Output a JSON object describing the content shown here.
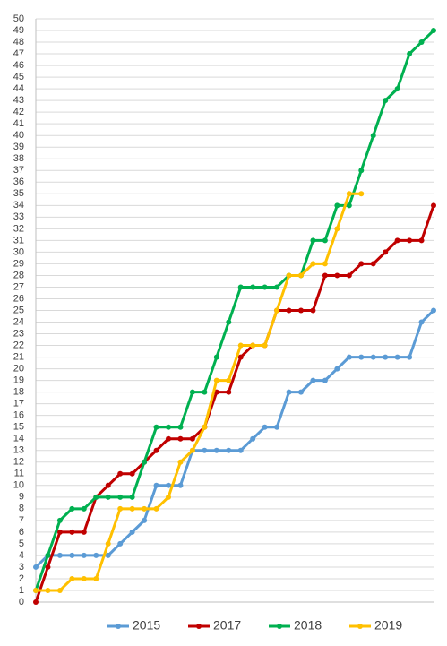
{
  "chart_data": {
    "type": "line",
    "categories": [
      null,
      null,
      null,
      null,
      null,
      null,
      null,
      null,
      null,
      null,
      null,
      null,
      null,
      null,
      null,
      null,
      null,
      null,
      null,
      null,
      null,
      null,
      null,
      null,
      null,
      null,
      null,
      null,
      null,
      null,
      null,
      null,
      null,
      null
    ],
    "series": [
      {
        "name": "2015",
        "color": "#5b9bd5",
        "values": [
          3,
          4,
          4,
          4,
          4,
          4,
          4,
          5,
          6,
          7,
          10,
          10,
          10,
          13,
          13,
          13,
          13,
          13,
          14,
          15,
          15,
          18,
          18,
          19,
          19,
          20,
          21,
          21,
          21,
          21,
          21,
          21,
          24,
          25
        ]
      },
      {
        "name": "2017",
        "color": "#c00000",
        "values": [
          0,
          3,
          6,
          6,
          6,
          9,
          10,
          11,
          11,
          12,
          13,
          14,
          14,
          14,
          15,
          18,
          18,
          21,
          22,
          22,
          25,
          25,
          25,
          25,
          28,
          28,
          28,
          29,
          29,
          30,
          31,
          31,
          31,
          34
        ]
      },
      {
        "name": "2018",
        "color": "#00b050",
        "values": [
          1,
          4,
          7,
          8,
          8,
          9,
          9,
          9,
          9,
          12,
          15,
          15,
          15,
          18,
          18,
          21,
          24,
          27,
          27,
          27,
          27,
          28,
          28,
          31,
          31,
          34,
          34,
          37,
          40,
          43,
          44,
          47,
          48,
          49
        ]
      },
      {
        "name": "2019",
        "color": "#ffc000",
        "values": [
          1,
          1,
          1,
          2,
          2,
          2,
          5,
          8,
          8,
          8,
          8,
          9,
          12,
          13,
          15,
          19,
          19,
          22,
          22,
          22,
          25,
          28,
          28,
          29,
          29,
          32,
          35,
          35,
          null,
          null,
          null,
          null,
          null,
          null
        ]
      }
    ],
    "ylim": [
      0,
      50
    ],
    "yticks": [
      0,
      1,
      2,
      3,
      4,
      5,
      6,
      7,
      8,
      9,
      10,
      11,
      12,
      13,
      14,
      15,
      16,
      17,
      18,
      19,
      20,
      21,
      22,
      23,
      24,
      25,
      26,
      27,
      28,
      29,
      30,
      31,
      32,
      33,
      34,
      35,
      36,
      37,
      38,
      39,
      40,
      41,
      42,
      43,
      44,
      45,
      46,
      47,
      48,
      49,
      50
    ],
    "grid": true,
    "legend": "bottom"
  }
}
